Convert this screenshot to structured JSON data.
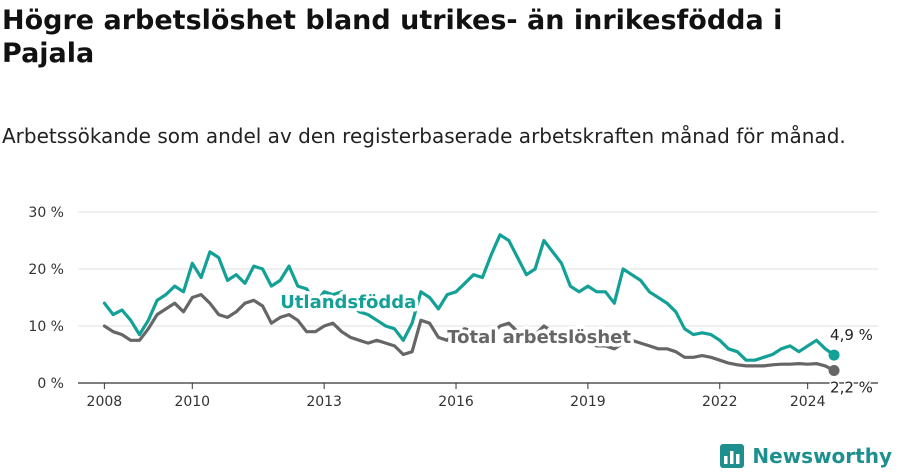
{
  "title": "Högre arbetslöshet bland utrikes- än inrikesfödda i Pajala",
  "subtitle": "Arbetssökande som andel av den registerbaserade arbetskraften månad för månad.",
  "brand": {
    "name": "Newsworthy",
    "color": "#1d8f8f"
  },
  "chart_data": {
    "type": "line",
    "title": "Högre arbetslöshet bland utrikes- än inrikesfödda i Pajala",
    "subtitle": "Arbetssökande som andel av den registerbaserade arbetskraften månad för månad.",
    "xlabel": "",
    "ylabel": "",
    "xlim": [
      2007.4,
      2025.6
    ],
    "ylim": [
      0,
      30
    ],
    "y_ticks": [
      0,
      10,
      20,
      30
    ],
    "y_tick_labels": [
      "0 %",
      "10 %",
      "20 %",
      "30 %"
    ],
    "x_ticks": [
      2008,
      2010,
      2013,
      2016,
      2019,
      2022,
      2024
    ],
    "x_tick_labels": [
      "2008",
      "2010",
      "2013",
      "2016",
      "2019",
      "2022",
      "2024"
    ],
    "grid": true,
    "legend": "inline labels",
    "series": [
      {
        "name": "Utlandsfödda",
        "color": "#13a096",
        "end_label": "4,9 %",
        "points": [
          [
            2008.0,
            14.0
          ],
          [
            2008.2,
            12.0
          ],
          [
            2008.4,
            12.8
          ],
          [
            2008.6,
            11.0
          ],
          [
            2008.8,
            8.5
          ],
          [
            2009.0,
            11.0
          ],
          [
            2009.2,
            14.5
          ],
          [
            2009.4,
            15.5
          ],
          [
            2009.6,
            17.0
          ],
          [
            2009.8,
            16.0
          ],
          [
            2010.0,
            21.0
          ],
          [
            2010.2,
            18.5
          ],
          [
            2010.4,
            23.0
          ],
          [
            2010.6,
            22.0
          ],
          [
            2010.8,
            18.0
          ],
          [
            2011.0,
            19.0
          ],
          [
            2011.2,
            17.5
          ],
          [
            2011.4,
            20.5
          ],
          [
            2011.6,
            20.0
          ],
          [
            2011.8,
            17.0
          ],
          [
            2012.0,
            18.0
          ],
          [
            2012.2,
            20.5
          ],
          [
            2012.4,
            17.0
          ],
          [
            2012.6,
            16.5
          ],
          [
            2012.8,
            14.0
          ],
          [
            2013.0,
            16.0
          ],
          [
            2013.2,
            15.5
          ],
          [
            2013.4,
            16.0
          ],
          [
            2013.6,
            14.0
          ],
          [
            2013.8,
            12.5
          ],
          [
            2014.0,
            12.0
          ],
          [
            2014.2,
            11.0
          ],
          [
            2014.4,
            10.0
          ],
          [
            2014.6,
            9.5
          ],
          [
            2014.8,
            7.5
          ],
          [
            2015.0,
            10.5
          ],
          [
            2015.2,
            16.0
          ],
          [
            2015.4,
            15.0
          ],
          [
            2015.6,
            13.0
          ],
          [
            2015.8,
            15.5
          ],
          [
            2016.0,
            16.0
          ],
          [
            2016.2,
            17.5
          ],
          [
            2016.4,
            19.0
          ],
          [
            2016.6,
            18.5
          ],
          [
            2016.8,
            22.5
          ],
          [
            2017.0,
            26.0
          ],
          [
            2017.2,
            25.0
          ],
          [
            2017.4,
            22.0
          ],
          [
            2017.6,
            19.0
          ],
          [
            2017.8,
            20.0
          ],
          [
            2018.0,
            25.0
          ],
          [
            2018.2,
            23.0
          ],
          [
            2018.4,
            21.0
          ],
          [
            2018.6,
            17.0
          ],
          [
            2018.8,
            16.0
          ],
          [
            2019.0,
            17.0
          ],
          [
            2019.2,
            16.0
          ],
          [
            2019.4,
            16.0
          ],
          [
            2019.6,
            14.0
          ],
          [
            2019.8,
            20.0
          ],
          [
            2020.0,
            19.0
          ],
          [
            2020.2,
            18.0
          ],
          [
            2020.4,
            16.0
          ],
          [
            2020.6,
            15.0
          ],
          [
            2020.8,
            14.0
          ],
          [
            2021.0,
            12.5
          ],
          [
            2021.2,
            9.5
          ],
          [
            2021.4,
            8.5
          ],
          [
            2021.6,
            8.8
          ],
          [
            2021.8,
            8.5
          ],
          [
            2022.0,
            7.5
          ],
          [
            2022.2,
            6.0
          ],
          [
            2022.4,
            5.5
          ],
          [
            2022.6,
            4.0
          ],
          [
            2022.8,
            4.0
          ],
          [
            2023.0,
            4.5
          ],
          [
            2023.2,
            5.0
          ],
          [
            2023.4,
            6.0
          ],
          [
            2023.6,
            6.5
          ],
          [
            2023.8,
            5.5
          ],
          [
            2024.0,
            6.5
          ],
          [
            2024.2,
            7.5
          ],
          [
            2024.4,
            6.0
          ],
          [
            2024.6,
            4.9
          ]
        ]
      },
      {
        "name": "Total arbetslöshet",
        "color": "#666666",
        "end_label": "2,2 %",
        "points": [
          [
            2008.0,
            10.0
          ],
          [
            2008.2,
            9.0
          ],
          [
            2008.4,
            8.5
          ],
          [
            2008.6,
            7.5
          ],
          [
            2008.8,
            7.5
          ],
          [
            2009.0,
            9.5
          ],
          [
            2009.2,
            12.0
          ],
          [
            2009.4,
            13.0
          ],
          [
            2009.6,
            14.0
          ],
          [
            2009.8,
            12.5
          ],
          [
            2010.0,
            15.0
          ],
          [
            2010.2,
            15.5
          ],
          [
            2010.4,
            14.0
          ],
          [
            2010.6,
            12.0
          ],
          [
            2010.8,
            11.5
          ],
          [
            2011.0,
            12.5
          ],
          [
            2011.2,
            14.0
          ],
          [
            2011.4,
            14.5
          ],
          [
            2011.6,
            13.5
          ],
          [
            2011.8,
            10.5
          ],
          [
            2012.0,
            11.5
          ],
          [
            2012.2,
            12.0
          ],
          [
            2012.4,
            11.0
          ],
          [
            2012.6,
            9.0
          ],
          [
            2012.8,
            9.0
          ],
          [
            2013.0,
            10.0
          ],
          [
            2013.2,
            10.5
          ],
          [
            2013.4,
            9.0
          ],
          [
            2013.6,
            8.0
          ],
          [
            2013.8,
            7.5
          ],
          [
            2014.0,
            7.0
          ],
          [
            2014.2,
            7.5
          ],
          [
            2014.4,
            7.0
          ],
          [
            2014.6,
            6.5
          ],
          [
            2014.8,
            5.0
          ],
          [
            2015.0,
            5.5
          ],
          [
            2015.2,
            11.0
          ],
          [
            2015.4,
            10.5
          ],
          [
            2015.6,
            8.0
          ],
          [
            2015.8,
            7.5
          ],
          [
            2016.0,
            9.0
          ],
          [
            2016.2,
            9.5
          ],
          [
            2016.4,
            9.0
          ],
          [
            2016.6,
            9.0
          ],
          [
            2016.8,
            8.5
          ],
          [
            2017.0,
            10.0
          ],
          [
            2017.2,
            10.5
          ],
          [
            2017.4,
            9.0
          ],
          [
            2017.6,
            8.0
          ],
          [
            2017.8,
            8.5
          ],
          [
            2018.0,
            10.0
          ],
          [
            2018.2,
            9.0
          ],
          [
            2018.4,
            8.0
          ],
          [
            2018.6,
            7.5
          ],
          [
            2018.8,
            7.0
          ],
          [
            2019.0,
            7.0
          ],
          [
            2019.2,
            6.5
          ],
          [
            2019.4,
            6.5
          ],
          [
            2019.6,
            6.0
          ],
          [
            2019.8,
            7.0
          ],
          [
            2020.0,
            7.5
          ],
          [
            2020.2,
            7.0
          ],
          [
            2020.4,
            6.5
          ],
          [
            2020.6,
            6.0
          ],
          [
            2020.8,
            6.0
          ],
          [
            2021.0,
            5.5
          ],
          [
            2021.2,
            4.5
          ],
          [
            2021.4,
            4.5
          ],
          [
            2021.6,
            4.8
          ],
          [
            2021.8,
            4.5
          ],
          [
            2022.0,
            4.0
          ],
          [
            2022.2,
            3.5
          ],
          [
            2022.4,
            3.2
          ],
          [
            2022.6,
            3.0
          ],
          [
            2022.8,
            3.0
          ],
          [
            2023.0,
            3.0
          ],
          [
            2023.2,
            3.2
          ],
          [
            2023.4,
            3.3
          ],
          [
            2023.6,
            3.3
          ],
          [
            2023.8,
            3.4
          ],
          [
            2024.0,
            3.3
          ],
          [
            2024.2,
            3.4
          ],
          [
            2024.4,
            3.0
          ],
          [
            2024.6,
            2.2
          ]
        ]
      }
    ]
  }
}
